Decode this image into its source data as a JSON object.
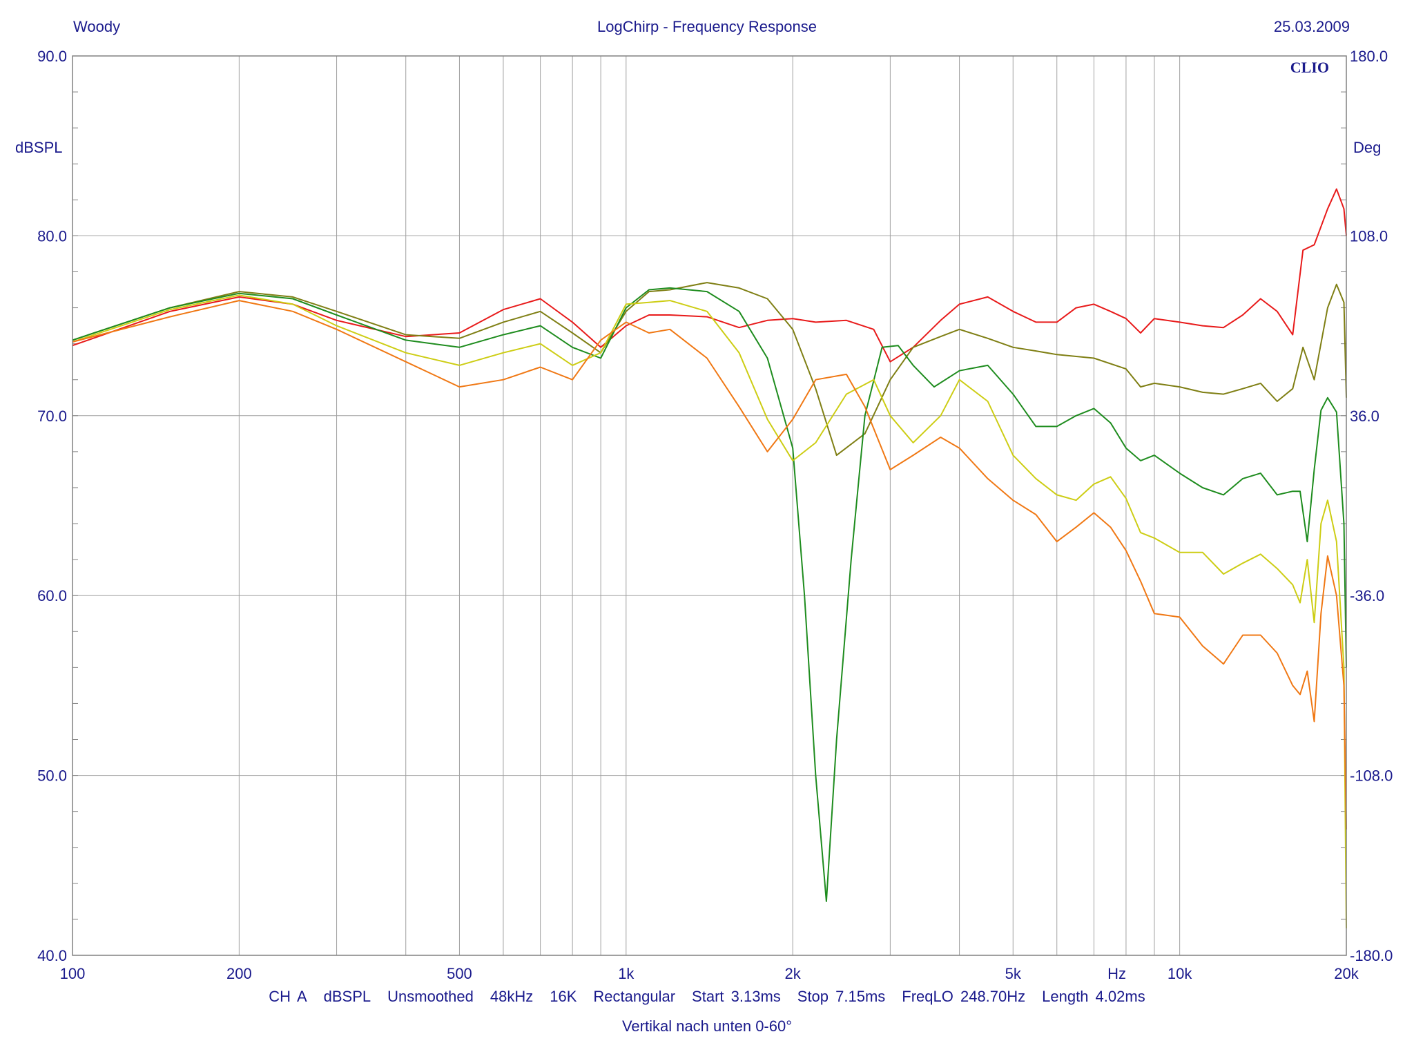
{
  "header": {
    "left": "Woody",
    "center": "LogChirp - Frequency Response",
    "right": "25.03.2009"
  },
  "brand": "CLIO",
  "footer": {
    "line1": [
      "CH A",
      "dBSPL",
      "Unsmoothed",
      "48kHz",
      "16K",
      "Rectangular",
      "Start 3.13ms",
      "Stop 7.15ms",
      "FreqLO 248.70Hz",
      "Length 4.02ms"
    ],
    "line2": "Vertikal nach unten 0-60°"
  },
  "chart_data": {
    "type": "line",
    "title": "LogChirp - Frequency Response",
    "xscale": "log",
    "xlim": [
      100,
      20000
    ],
    "ylim": [
      40,
      90
    ],
    "y2lim": [
      -180,
      180
    ],
    "ylabel": "dBSPL",
    "y2label": "Deg",
    "xunit_label": "Hz",
    "grid": true,
    "x_tick_labels": [
      {
        "v": 100,
        "t": "100"
      },
      {
        "v": 200,
        "t": "200"
      },
      {
        "v": 500,
        "t": "500"
      },
      {
        "v": 1000,
        "t": "1k"
      },
      {
        "v": 2000,
        "t": "2k"
      },
      {
        "v": 5000,
        "t": "5k"
      },
      {
        "v": 7700,
        "t": "Hz"
      },
      {
        "v": 10000,
        "t": "10k"
      },
      {
        "v": 20000,
        "t": "20k"
      }
    ],
    "y_tick_labels": [
      "40.0",
      "50.0",
      "60.0",
      "70.0",
      "80.0",
      "90.0"
    ],
    "y2_tick_labels": [
      "-180.0",
      "-108.0",
      "-36.0",
      "36.0",
      "108.0",
      "180.0"
    ],
    "series": [
      {
        "color": "#e81a1a",
        "points": [
          [
            100,
            73.9
          ],
          [
            150,
            75.8
          ],
          [
            200,
            76.6
          ],
          [
            250,
            76.2
          ],
          [
            300,
            75.3
          ],
          [
            400,
            74.4
          ],
          [
            500,
            74.6
          ],
          [
            600,
            75.9
          ],
          [
            700,
            76.5
          ],
          [
            800,
            75.2
          ],
          [
            900,
            73.8
          ],
          [
            1000,
            75.0
          ],
          [
            1100,
            75.6
          ],
          [
            1200,
            75.6
          ],
          [
            1400,
            75.5
          ],
          [
            1600,
            74.9
          ],
          [
            1800,
            75.3
          ],
          [
            2000,
            75.4
          ],
          [
            2200,
            75.2
          ],
          [
            2500,
            75.3
          ],
          [
            2800,
            74.8
          ],
          [
            3000,
            73.0
          ],
          [
            3300,
            73.8
          ],
          [
            3700,
            75.3
          ],
          [
            4000,
            76.2
          ],
          [
            4500,
            76.6
          ],
          [
            5000,
            75.8
          ],
          [
            5500,
            75.2
          ],
          [
            6000,
            75.2
          ],
          [
            6500,
            76.0
          ],
          [
            7000,
            76.2
          ],
          [
            7500,
            75.8
          ],
          [
            8000,
            75.4
          ],
          [
            8500,
            74.6
          ],
          [
            9000,
            75.4
          ],
          [
            10000,
            75.2
          ],
          [
            11000,
            75.0
          ],
          [
            12000,
            74.9
          ],
          [
            13000,
            75.6
          ],
          [
            14000,
            76.5
          ],
          [
            15000,
            75.8
          ],
          [
            16000,
            74.5
          ],
          [
            16700,
            79.2
          ],
          [
            17500,
            79.5
          ],
          [
            18500,
            81.5
          ],
          [
            19200,
            82.6
          ],
          [
            19800,
            81.5
          ],
          [
            20000,
            80.0
          ]
        ]
      },
      {
        "color": "#7f7f14",
        "points": [
          [
            100,
            74.2
          ],
          [
            150,
            76.0
          ],
          [
            200,
            76.9
          ],
          [
            250,
            76.6
          ],
          [
            300,
            75.8
          ],
          [
            400,
            74.5
          ],
          [
            500,
            74.3
          ],
          [
            600,
            75.2
          ],
          [
            700,
            75.8
          ],
          [
            800,
            74.6
          ],
          [
            900,
            73.5
          ],
          [
            1000,
            75.8
          ],
          [
            1100,
            76.9
          ],
          [
            1200,
            77.0
          ],
          [
            1400,
            77.4
          ],
          [
            1600,
            77.1
          ],
          [
            1800,
            76.5
          ],
          [
            2000,
            74.8
          ],
          [
            2200,
            71.5
          ],
          [
            2400,
            67.8
          ],
          [
            2700,
            69.0
          ],
          [
            3000,
            72.0
          ],
          [
            3300,
            73.8
          ],
          [
            3700,
            74.4
          ],
          [
            4000,
            74.8
          ],
          [
            4500,
            74.3
          ],
          [
            5000,
            73.8
          ],
          [
            5500,
            73.6
          ],
          [
            6000,
            73.4
          ],
          [
            7000,
            73.2
          ],
          [
            8000,
            72.6
          ],
          [
            8500,
            71.6
          ],
          [
            9000,
            71.8
          ],
          [
            10000,
            71.6
          ],
          [
            11000,
            71.3
          ],
          [
            12000,
            71.2
          ],
          [
            13000,
            71.5
          ],
          [
            14000,
            71.8
          ],
          [
            15000,
            70.8
          ],
          [
            16000,
            71.5
          ],
          [
            16700,
            73.8
          ],
          [
            17500,
            72.0
          ],
          [
            18500,
            76.0
          ],
          [
            19200,
            77.3
          ],
          [
            19800,
            76.3
          ],
          [
            20000,
            71.0
          ]
        ]
      },
      {
        "color": "#1e8c1e",
        "points": [
          [
            100,
            74.2
          ],
          [
            150,
            76.0
          ],
          [
            200,
            76.8
          ],
          [
            250,
            76.5
          ],
          [
            300,
            75.6
          ],
          [
            400,
            74.2
          ],
          [
            500,
            73.8
          ],
          [
            600,
            74.5
          ],
          [
            700,
            75.0
          ],
          [
            800,
            73.8
          ],
          [
            900,
            73.2
          ],
          [
            1000,
            76.0
          ],
          [
            1100,
            77.0
          ],
          [
            1200,
            77.1
          ],
          [
            1400,
            76.9
          ],
          [
            1600,
            75.8
          ],
          [
            1800,
            73.2
          ],
          [
            2000,
            68.2
          ],
          [
            2100,
            60.0
          ],
          [
            2200,
            50.0
          ],
          [
            2300,
            43.0
          ],
          [
            2400,
            52.0
          ],
          [
            2550,
            62.0
          ],
          [
            2700,
            70.0
          ],
          [
            2900,
            73.8
          ],
          [
            3100,
            73.9
          ],
          [
            3300,
            72.8
          ],
          [
            3600,
            71.6
          ],
          [
            4000,
            72.5
          ],
          [
            4500,
            72.8
          ],
          [
            5000,
            71.2
          ],
          [
            5500,
            69.4
          ],
          [
            6000,
            69.4
          ],
          [
            6500,
            70.0
          ],
          [
            7000,
            70.4
          ],
          [
            7500,
            69.6
          ],
          [
            8000,
            68.2
          ],
          [
            8500,
            67.5
          ],
          [
            9000,
            67.8
          ],
          [
            10000,
            66.8
          ],
          [
            11000,
            66.0
          ],
          [
            12000,
            65.6
          ],
          [
            13000,
            66.5
          ],
          [
            14000,
            66.8
          ],
          [
            15000,
            65.6
          ],
          [
            16000,
            65.8
          ],
          [
            16500,
            65.8
          ],
          [
            17000,
            63.0
          ],
          [
            17500,
            67.0
          ],
          [
            18000,
            70.3
          ],
          [
            18500,
            71.0
          ],
          [
            19200,
            70.2
          ],
          [
            19800,
            64.0
          ],
          [
            20000,
            56.0
          ]
        ]
      },
      {
        "color": "#cdcd14",
        "points": [
          [
            100,
            74.1
          ],
          [
            150,
            75.9
          ],
          [
            200,
            76.7
          ],
          [
            250,
            76.2
          ],
          [
            300,
            75.0
          ],
          [
            400,
            73.5
          ],
          [
            500,
            72.8
          ],
          [
            600,
            73.5
          ],
          [
            700,
            74.0
          ],
          [
            800,
            72.8
          ],
          [
            900,
            73.5
          ],
          [
            1000,
            76.2
          ],
          [
            1100,
            76.3
          ],
          [
            1200,
            76.4
          ],
          [
            1400,
            75.8
          ],
          [
            1600,
            73.5
          ],
          [
            1800,
            69.8
          ],
          [
            2000,
            67.5
          ],
          [
            2200,
            68.5
          ],
          [
            2500,
            71.2
          ],
          [
            2800,
            72.0
          ],
          [
            3000,
            70.0
          ],
          [
            3300,
            68.5
          ],
          [
            3700,
            70.0
          ],
          [
            4000,
            72.0
          ],
          [
            4500,
            70.8
          ],
          [
            5000,
            67.8
          ],
          [
            5500,
            66.5
          ],
          [
            6000,
            65.6
          ],
          [
            6500,
            65.3
          ],
          [
            7000,
            66.2
          ],
          [
            7500,
            66.6
          ],
          [
            8000,
            65.4
          ],
          [
            8500,
            63.5
          ],
          [
            9000,
            63.2
          ],
          [
            10000,
            62.4
          ],
          [
            11000,
            62.4
          ],
          [
            12000,
            61.2
          ],
          [
            13000,
            61.8
          ],
          [
            14000,
            62.3
          ],
          [
            15000,
            61.5
          ],
          [
            16000,
            60.6
          ],
          [
            16500,
            59.6
          ],
          [
            17000,
            62.0
          ],
          [
            17500,
            58.5
          ],
          [
            18000,
            64.0
          ],
          [
            18500,
            65.3
          ],
          [
            19200,
            63.0
          ],
          [
            19800,
            56.0
          ],
          [
            20000,
            41.5
          ]
        ]
      },
      {
        "color": "#f07814",
        "points": [
          [
            100,
            74.1
          ],
          [
            150,
            75.5
          ],
          [
            200,
            76.4
          ],
          [
            250,
            75.8
          ],
          [
            300,
            74.8
          ],
          [
            400,
            73.0
          ],
          [
            500,
            71.6
          ],
          [
            600,
            72.0
          ],
          [
            700,
            72.7
          ],
          [
            800,
            72.0
          ],
          [
            900,
            74.2
          ],
          [
            1000,
            75.2
          ],
          [
            1100,
            74.6
          ],
          [
            1200,
            74.8
          ],
          [
            1400,
            73.2
          ],
          [
            1600,
            70.5
          ],
          [
            1800,
            68.0
          ],
          [
            2000,
            69.8
          ],
          [
            2200,
            72.0
          ],
          [
            2500,
            72.3
          ],
          [
            2700,
            70.5
          ],
          [
            3000,
            67.0
          ],
          [
            3300,
            67.8
          ],
          [
            3700,
            68.8
          ],
          [
            4000,
            68.2
          ],
          [
            4500,
            66.5
          ],
          [
            5000,
            65.3
          ],
          [
            5500,
            64.5
          ],
          [
            6000,
            63.0
          ],
          [
            6500,
            63.8
          ],
          [
            7000,
            64.6
          ],
          [
            7500,
            63.8
          ],
          [
            8000,
            62.5
          ],
          [
            8500,
            60.8
          ],
          [
            9000,
            59.0
          ],
          [
            10000,
            58.8
          ],
          [
            11000,
            57.2
          ],
          [
            12000,
            56.2
          ],
          [
            13000,
            57.8
          ],
          [
            14000,
            57.8
          ],
          [
            15000,
            56.8
          ],
          [
            16000,
            55.0
          ],
          [
            16500,
            54.5
          ],
          [
            17000,
            55.8
          ],
          [
            17500,
            53.0
          ],
          [
            18000,
            59.0
          ],
          [
            18500,
            62.2
          ],
          [
            19200,
            60.0
          ],
          [
            19800,
            55.0
          ],
          [
            20000,
            47.0
          ]
        ]
      }
    ]
  }
}
